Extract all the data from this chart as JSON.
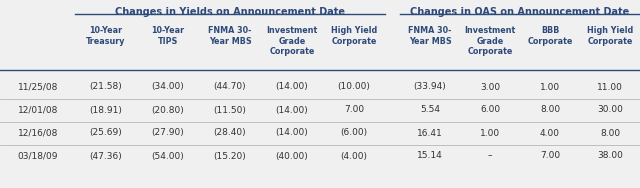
{
  "title_left": "Changes in Yields on Announcement Date",
  "title_right": "Changes in OAS on Announcement Date",
  "col_headers_left": [
    "10-Year\nTreasury",
    "10-Year\nTIPS",
    "FNMA 30-\nYear MBS",
    "Investment\nGrade\nCorporate",
    "High Yield\nCorporate"
  ],
  "col_headers_right": [
    "FNMA 30-\nYear MBS",
    "Investment\nGrade\nCorporate",
    "BBB\nCorporate",
    "High Yield\nCorporate"
  ],
  "row_labels": [
    "11/25/08",
    "12/01/08",
    "12/16/08",
    "03/18/09"
  ],
  "data_left": [
    [
      "(21.58)",
      "(34.00)",
      "(44.70)",
      "(14.00)",
      "(10.00)"
    ],
    [
      "(18.91)",
      "(20.80)",
      "(11.50)",
      "(14.00)",
      "7.00"
    ],
    [
      "(25.69)",
      "(27.90)",
      "(28.40)",
      "(14.00)",
      "(6.00)"
    ],
    [
      "(47.36)",
      "(54.00)",
      "(15.20)",
      "(40.00)",
      "(4.00)"
    ]
  ],
  "data_right": [
    [
      "(33.94)",
      "3.00",
      "1.00",
      "11.00"
    ],
    [
      "5.54",
      "6.00",
      "8.00",
      "30.00"
    ],
    [
      "16.41",
      "1.00",
      "4.00",
      "8.00"
    ],
    [
      "15.14",
      "–",
      "7.00",
      "38.00"
    ]
  ],
  "bg_color": "#f0f0f0",
  "header_color": "#2e4a7a",
  "text_color": "#333333",
  "line_color": "#2e4a7a",
  "row_line_color": "#aaaaaa",
  "title_fontsize": 7.0,
  "header_fontsize": 5.8,
  "data_fontsize": 6.5
}
